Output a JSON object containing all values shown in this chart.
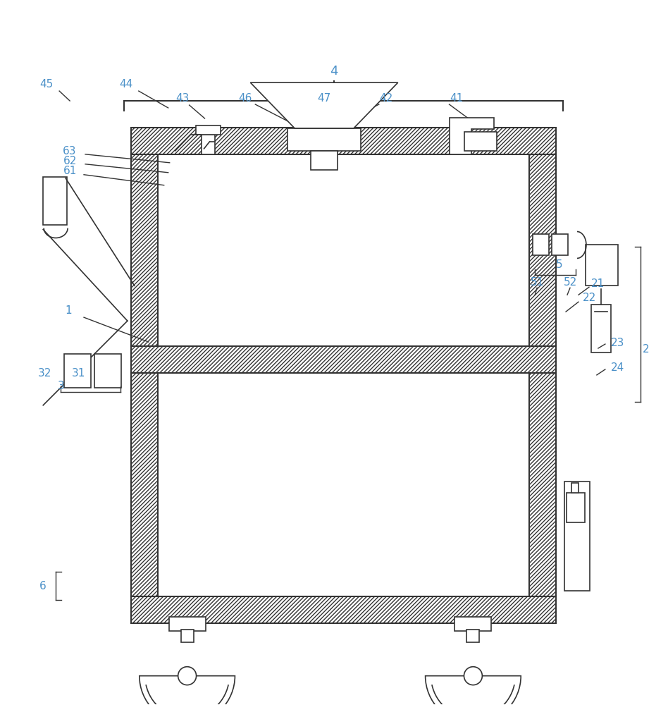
{
  "bg_color": "#ffffff",
  "line_color": "#333333",
  "label_color": "#4a90c8",
  "figsize": [
    9.48,
    10.0
  ],
  "dpi": 100
}
